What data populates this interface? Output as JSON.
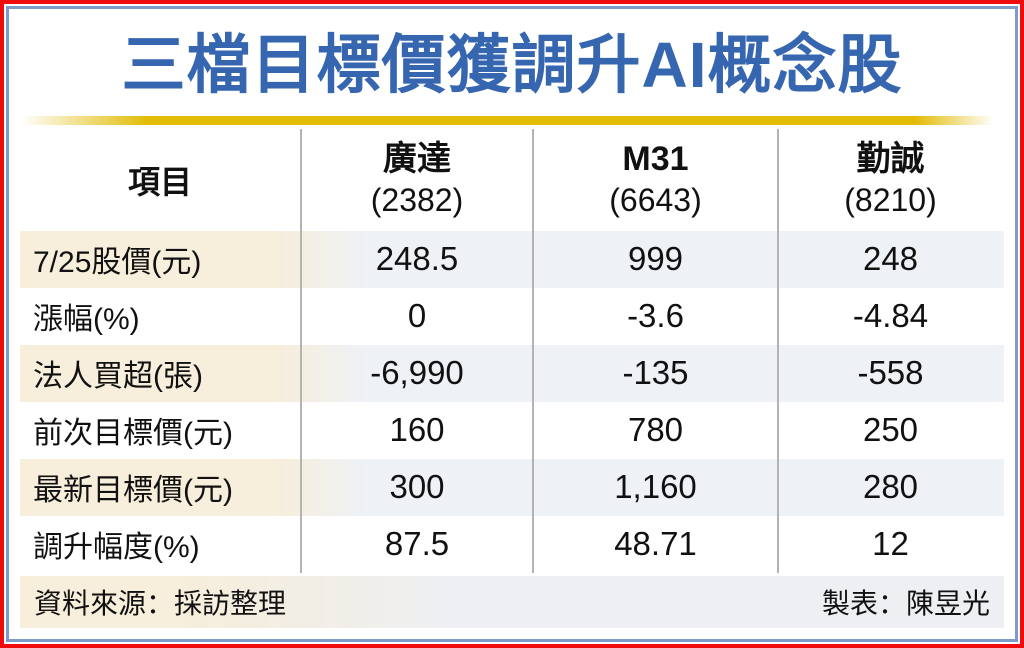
{
  "title": "三檔目標價獲調升AI概念股",
  "table": {
    "header": {
      "item_label": "項目",
      "companies": [
        {
          "name": "廣達",
          "code": "(2382)"
        },
        {
          "name": "M31",
          "code": "(6643)"
        },
        {
          "name": "勤誠",
          "code": "(8210)"
        }
      ]
    },
    "rows": [
      {
        "label": "7/25股價(元)",
        "values": [
          "248.5",
          "999",
          "248"
        ]
      },
      {
        "label": "漲幅(%)",
        "values": [
          "0",
          "-3.6",
          "-4.84"
        ]
      },
      {
        "label": "法人買超(張)",
        "values": [
          "-6,990",
          "-135",
          "-558"
        ]
      },
      {
        "label": "前次目標價(元)",
        "values": [
          "160",
          "780",
          "250"
        ]
      },
      {
        "label": "最新目標價(元)",
        "values": [
          "300",
          "1,160",
          "280"
        ]
      },
      {
        "label": "調升幅度(%)",
        "values": [
          "87.5",
          "48.71",
          "12"
        ]
      }
    ]
  },
  "footer": {
    "source": "資料來源：採訪整理",
    "credit": "製表：陳昱光"
  },
  "colors": {
    "outer_border": "#ee0d0d",
    "inner_border": "#7e9cc8",
    "title_blue": "#3766b0",
    "gold_bar": "#e2bc07",
    "row_shade_left": "#f7eedb",
    "row_shade_right": "#eef1f5",
    "divider_gray": "#b3b3b3"
  },
  "chart_data": {
    "type": "table",
    "title": "三檔目標價獲調升AI概念股",
    "columns": [
      "項目",
      "廣達 (2382)",
      "M31 (6643)",
      "勤誠 (8210)"
    ],
    "rows": [
      [
        "7/25股價(元)",
        248.5,
        999,
        248
      ],
      [
        "漲幅(%)",
        0,
        -3.6,
        -4.84
      ],
      [
        "法人買超(張)",
        -6990,
        -135,
        -558
      ],
      [
        "前次目標價(元)",
        160,
        780,
        250
      ],
      [
        "最新目標價(元)",
        300,
        1160,
        280
      ],
      [
        "調升幅度(%)",
        87.5,
        48.71,
        12
      ]
    ],
    "source": "資料來源：採訪整理",
    "credit": "製表：陳昱光"
  }
}
